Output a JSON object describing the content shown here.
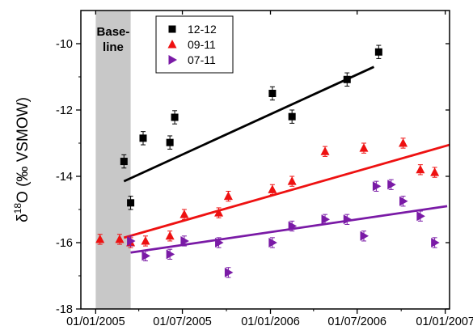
{
  "chart_data": {
    "type": "scatter",
    "title": "",
    "xlabel": "",
    "ylabel_prefix": "δ",
    "ylabel_sup": "18",
    "ylabel_suffix": "O (‰ VSMOW)",
    "xlim": [
      "2004-12-01",
      "2007-01-10"
    ],
    "ylim": [
      -18,
      -9
    ],
    "x_ticks": [
      "01/01/2005",
      "01/07/2005",
      "01/01/2006",
      "01/07/2006",
      "01/01/2007"
    ],
    "x_tick_dates": [
      "2005-01-01",
      "2005-07-01",
      "2006-01-01",
      "2006-07-01",
      "2007-01-01"
    ],
    "y_ticks": [
      -18,
      -16,
      -14,
      -12,
      -10
    ],
    "grid": false,
    "legend_position": "top-center",
    "shaded_region": {
      "label_line1": "Base-",
      "label_line2": "line",
      "start": "2005-01-01",
      "end": "2005-03-15",
      "color": "#c8c8c8"
    },
    "series": [
      {
        "name": "12-12",
        "marker": "square",
        "color": "#000000",
        "x": [
          "2005-03-01",
          "2005-03-15",
          "2005-04-10",
          "2005-06-05",
          "2005-06-15",
          "2006-01-05",
          "2006-02-15",
          "2006-06-10",
          "2006-08-15"
        ],
        "y": [
          -13.55,
          -14.8,
          -12.85,
          -12.98,
          -12.22,
          -11.5,
          -12.2,
          -11.08,
          -10.25
        ],
        "err": [
          0.2,
          0.2,
          0.2,
          0.2,
          0.2,
          0.2,
          0.2,
          0.2,
          0.2
        ],
        "fit": {
          "x": [
            "2005-03-01",
            "2006-08-05"
          ],
          "y": [
            -14.15,
            -10.7
          ]
        }
      },
      {
        "name": "09-11",
        "marker": "triangle-up",
        "color": "#ee1111",
        "x": [
          "2005-01-10",
          "2005-02-20",
          "2005-03-15",
          "2005-04-15",
          "2005-06-05",
          "2005-07-05",
          "2005-09-15",
          "2005-10-05",
          "2006-01-05",
          "2006-02-15",
          "2006-04-25",
          "2006-07-15",
          "2006-10-05",
          "2006-11-10",
          "2006-12-10"
        ],
        "y": [
          -15.9,
          -15.9,
          -16.0,
          -15.95,
          -15.8,
          -15.15,
          -15.1,
          -14.6,
          -14.4,
          -14.15,
          -13.25,
          -13.15,
          -13.0,
          -13.8,
          -13.88
        ],
        "err": [
          0.15,
          0.15,
          0.15,
          0.15,
          0.15,
          0.15,
          0.15,
          0.15,
          0.15,
          0.15,
          0.15,
          0.15,
          0.15,
          0.15,
          0.15
        ],
        "fit": {
          "x": [
            "2005-03-01",
            "2007-01-10"
          ],
          "y": [
            -15.85,
            -13.05
          ]
        }
      },
      {
        "name": "07-11",
        "marker": "triangle-right",
        "color": "#7a1aa6",
        "x": [
          "2005-03-15",
          "2005-04-15",
          "2005-06-05",
          "2005-07-05",
          "2005-09-15",
          "2005-10-05",
          "2006-01-05",
          "2006-02-15",
          "2006-04-25",
          "2006-06-10",
          "2006-07-15",
          "2006-08-10",
          "2006-09-10",
          "2006-10-05",
          "2006-11-10",
          "2006-12-10"
        ],
        "y": [
          -15.95,
          -16.4,
          -16.35,
          -15.95,
          -16.0,
          -16.9,
          -16.0,
          -15.5,
          -15.3,
          -15.3,
          -15.8,
          -14.3,
          -14.25,
          -14.75,
          -15.2,
          -16.0
        ],
        "err": [
          0.15,
          0.15,
          0.15,
          0.15,
          0.15,
          0.15,
          0.15,
          0.15,
          0.15,
          0.15,
          0.15,
          0.15,
          0.15,
          0.15,
          0.15,
          0.15
        ],
        "fit": {
          "x": [
            "2005-03-15",
            "2007-01-05"
          ],
          "y": [
            -16.3,
            -14.9
          ]
        }
      }
    ]
  }
}
